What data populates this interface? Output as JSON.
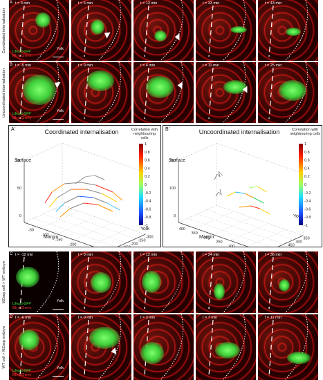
{
  "row_A": {
    "side_label": "Coordinated internalisation",
    "panel_letter": "A",
    "timepoints": [
      "t = 0 min",
      "t = 5 min",
      "t = 13 min",
      "t = 33 min",
      "t = 43 min"
    ],
    "legend": {
      "green": "Lifeact-GFP",
      "red": "Mb mCherry"
    },
    "yolk": "Yolk"
  },
  "row_B": {
    "side_label": "Uncoordinated internalisation",
    "panel_letter": "B",
    "timepoints": [
      "t = -5 min",
      "t = 0 min",
      "t = 4 min",
      "t = 11 min",
      "t = 25 min"
    ],
    "legend": {
      "green": "Lifeact-GFP",
      "red": "Mb mCherry"
    },
    "yolk": "Yolk"
  },
  "plot_A": {
    "panel_letter": "A'",
    "title": "Coordinated internalisation",
    "colorbar_title": "Correlation with neighbouring cells",
    "colorbar_ticks": [
      "1",
      "0.8",
      "0.6",
      "0.4",
      "0.2",
      "0",
      "-0.2",
      "-0.4",
      "-0.6",
      "-0.8",
      "-1"
    ],
    "axis_surface": "Surface",
    "axis_margin": "Margin",
    "axis_yolk": "Yolk",
    "z_ticks": [
      "100",
      "50",
      "0"
    ],
    "margin_ticks": [
      "-50",
      "-100",
      "-150",
      "-200",
      "-250",
      "-300"
    ],
    "yolk_ticks": [
      "-100",
      "-150",
      "-200",
      "-250",
      "-300"
    ]
  },
  "plot_B": {
    "panel_letter": "B'",
    "title": "Uncoordinated internalisation",
    "colorbar_title": "Correlation with neighbouring cells",
    "colorbar_ticks": [
      "1",
      "0.8",
      "0.6",
      "0.4",
      "0.2",
      "0",
      "-0.2",
      "-0.4",
      "-0.6",
      "-0.8",
      "-1"
    ],
    "axis_surface": "Surface",
    "axis_margin": "Margin",
    "axis_yolk": "Yolk",
    "z_ticks": [
      "200",
      "100",
      "0"
    ],
    "margin_ticks": [
      "400",
      "350",
      "300",
      "250",
      "200",
      "150",
      "100"
    ],
    "yolk_ticks": [
      "550",
      "500",
      "450",
      "400",
      "350"
    ]
  },
  "row_C": {
    "side_label": "MZoep cell > WT embryo",
    "panel_letter": "C",
    "timepoints": [
      "t = -12 min",
      "t = 0 min",
      "t = 12 min",
      "t = 24 min",
      "t = 36 min"
    ],
    "legend": {
      "green": "Lifeact-GFP",
      "red": "Mb mCherry"
    },
    "yolk": "Yolk"
  },
  "row_D": {
    "side_label": "WT cell > MZoep embryo",
    "panel_letter": "D",
    "timepoints": [
      "t = -6 min",
      "t = 0 min",
      "t = 3 min",
      "t = 7 min",
      "t = 11 min"
    ],
    "legend": {
      "green": "Lifeact-GFP",
      "red": "Mb mCherry"
    },
    "yolk": "Yolk"
  },
  "colors": {
    "lifeact": "#38e038",
    "mcherry": "#ff3a3a",
    "background": "#ffffff"
  }
}
